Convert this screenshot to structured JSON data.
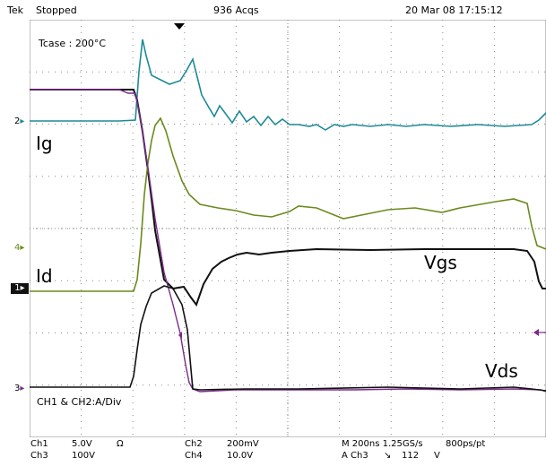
{
  "status_bar": {
    "brand": "Tek",
    "state": "Stopped",
    "acquisitions": "936 Acqs",
    "timestamp": "20 Mar 08 17:15:12"
  },
  "screen": {
    "tcase_label": "Tcase : 200°C",
    "trace_labels": {
      "ig": "Ig",
      "id": "Id",
      "vgs": "Vgs",
      "vds": "Vds"
    },
    "channel_note": "CH1 & CH2:A/Div",
    "channel_markers": {
      "ch2": "2",
      "ch4": "4",
      "ch1": "1",
      "ch3": "3"
    }
  },
  "footer": {
    "ch1_name": "Ch1",
    "ch1_scale": "5.0V",
    "ch1_coupling": "Ω",
    "ch3_name": "Ch3",
    "ch3_scale": "100V",
    "ch2_name": "Ch2",
    "ch2_scale": "200mV",
    "ch4_name": "Ch4",
    "ch4_scale": "10.0V",
    "timebase": "M 200ns 1.25GS/s",
    "record": "800ps/pt",
    "trigger_source": "A Ch3",
    "trigger_slope": "↘",
    "trigger_level": "112",
    "trigger_unit": "V"
  },
  "colors": {
    "ig_trace": "#1e8a96",
    "id_trace": "#111111",
    "vgs_trace": "#6b8a1c",
    "vds_trace": "#7a2a8a"
  }
}
